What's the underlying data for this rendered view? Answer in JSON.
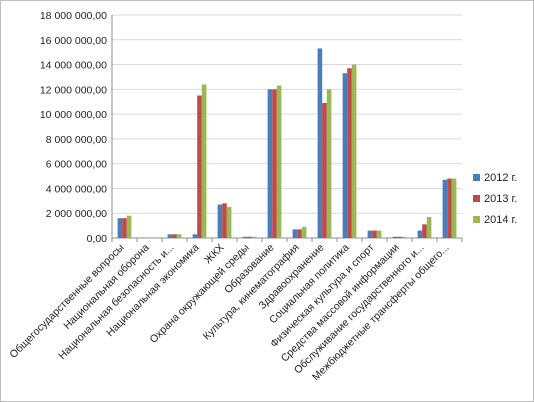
{
  "chart_data": {
    "type": "bar",
    "title": "",
    "xlabel": "",
    "ylabel": "",
    "ylim": [
      0,
      18000000
    ],
    "y_ticks": [
      "0,00",
      "2 000 000,00",
      "4 000 000,00",
      "6 000 000,00",
      "8 000 000,00",
      "10 000 000,00",
      "12 000 000,00",
      "14 000 000,00",
      "16 000 000,00",
      "18 000 000,00"
    ],
    "grid": true,
    "legend_position": "right",
    "categories": [
      "Общегосударственные вопросы",
      "Национальная оборона",
      "Национальная безопасность и...",
      "Национальная экономика",
      "ЖКХ",
      "Охрана окружающей среды",
      "Образование",
      "Культура, кинематография",
      "Здравоохранение",
      "Социальная политика",
      "Физическая культура и спорт",
      "Средства массовой информации",
      "Обслуживание государственного и...",
      "Межбюджетные трансферты общего..."
    ],
    "series": [
      {
        "name": "2012 г.",
        "color": "#4a7ebb",
        "values": [
          1600000,
          0,
          300000,
          300000,
          2700000,
          100000,
          12000000,
          700000,
          15300000,
          13300000,
          600000,
          100000,
          600000,
          4700000
        ]
      },
      {
        "name": "2013 г.",
        "color": "#be4b48",
        "values": [
          1600000,
          0,
          300000,
          11500000,
          2800000,
          100000,
          12000000,
          700000,
          10900000,
          13700000,
          600000,
          100000,
          1100000,
          4800000
        ]
      },
      {
        "name": "2014 г.",
        "color": "#98b954",
        "values": [
          1800000,
          0,
          300000,
          12400000,
          2500000,
          100000,
          12300000,
          900000,
          12000000,
          14000000,
          600000,
          100000,
          1700000,
          4800000
        ]
      }
    ]
  }
}
